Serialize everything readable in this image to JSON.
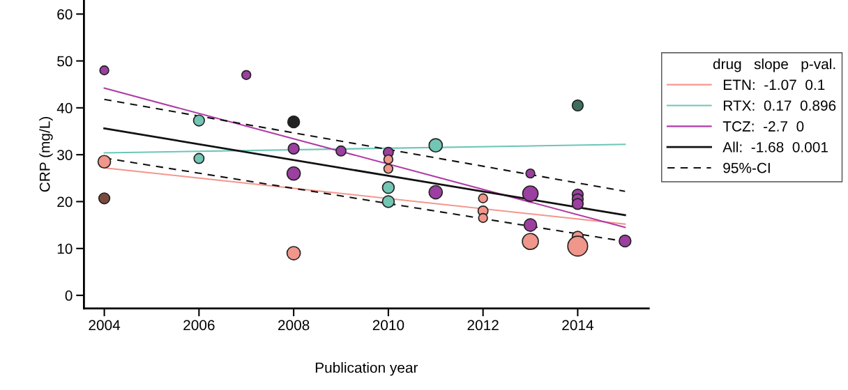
{
  "chart_data": {
    "type": "scatter",
    "xlabel": "Publication year",
    "ylabel": "CRP (mg/L)",
    "legend_title": "drug   slope   p-val.",
    "legend": "right",
    "grid": false,
    "xlim": [
      2003.57,
      2015.5
    ],
    "xticks": [
      2004,
      2006,
      2008,
      2010,
      2012,
      2014
    ],
    "ylim": [
      -2.8,
      63
    ],
    "yticks": [
      0,
      10,
      20,
      30,
      40,
      50,
      60
    ],
    "series": [
      {
        "color": "#9b3fa0",
        "marker": "circle",
        "x": [
          2004,
          2007,
          2008,
          2008,
          2009,
          2010,
          2011,
          2013,
          2013,
          2013,
          2014,
          2014,
          2014,
          2015
        ],
        "values": [
          48,
          47,
          31.3,
          26,
          30.8,
          30.5,
          22,
          26,
          21.7,
          15,
          21.5,
          20.5,
          19.5,
          11.6
        ],
        "sizes": [
          0.2,
          0.2,
          0.3,
          0.45,
          0.25,
          0.25,
          0.45,
          0.2,
          0.6,
          0.4,
          0.3,
          0.3,
          0.3,
          0.35
        ]
      },
      {
        "color": "#f0968a",
        "marker": "circle",
        "x": [
          2004,
          2008,
          2010,
          2010,
          2012,
          2012,
          2012,
          2013,
          2014,
          2014
        ],
        "values": [
          28.5,
          9,
          29,
          27,
          20.7,
          18,
          16.5,
          11.5,
          12.5,
          10.5
        ],
        "sizes": [
          0.4,
          0.45,
          0.2,
          0.2,
          0.2,
          0.25,
          0.2,
          0.65,
          0.3,
          1
        ]
      },
      {
        "color": "#72c6b4",
        "marker": "circle",
        "x": [
          2006,
          2006,
          2010,
          2010,
          2011
        ],
        "values": [
          37.3,
          29.2,
          23,
          20,
          32
        ],
        "sizes": [
          0.3,
          0.25,
          0.35,
          0.35,
          0.45
        ]
      },
      {
        "color": "#3e6e5c",
        "marker": "circle",
        "x": [
          2014
        ],
        "values": [
          40.5
        ],
        "sizes": [
          0.3
        ]
      },
      {
        "color": "#7a4a3f",
        "marker": "circle",
        "x": [
          2004
        ],
        "values": [
          20.7
        ],
        "sizes": [
          0.3
        ]
      },
      {
        "color": "#222222",
        "marker": "circle",
        "x": [
          2008
        ],
        "values": [
          37
        ],
        "sizes": [
          0.35
        ]
      },
      {
        "type": "line",
        "name": "ETN:  -1.07  0.1",
        "color": "#f4978e",
        "line_style": "solid",
        "x": [
          2004,
          2015
        ],
        "values": [
          27.2,
          15.2
        ]
      },
      {
        "type": "line",
        "name": "RTX:  0.17  0.896",
        "color": "#6cc5b8",
        "line_style": "solid",
        "x": [
          2004,
          2015
        ],
        "values": [
          30.4,
          32.2
        ]
      },
      {
        "type": "line",
        "name": "TCZ:  -2.7  0",
        "color": "#b03aa6",
        "line_style": "solid",
        "x": [
          2004,
          2015
        ],
        "values": [
          44.2,
          14.5
        ]
      },
      {
        "type": "line",
        "name": "All:  -1.68  0.001",
        "color": "#111111",
        "line_style": "solid",
        "x": [
          2004,
          2015
        ],
        "values": [
          35.6,
          17.1
        ]
      },
      {
        "type": "line",
        "name": "95%-CI",
        "color": "#111111",
        "line_style": "dashed",
        "x": [
          2004,
          2015
        ],
        "values": [
          41.8,
          22.2
        ]
      },
      {
        "type": "line",
        "color": "#111111",
        "line_style": "dashed",
        "x": [
          2004,
          2015
        ],
        "values": [
          29.3,
          11.5
        ]
      }
    ]
  }
}
